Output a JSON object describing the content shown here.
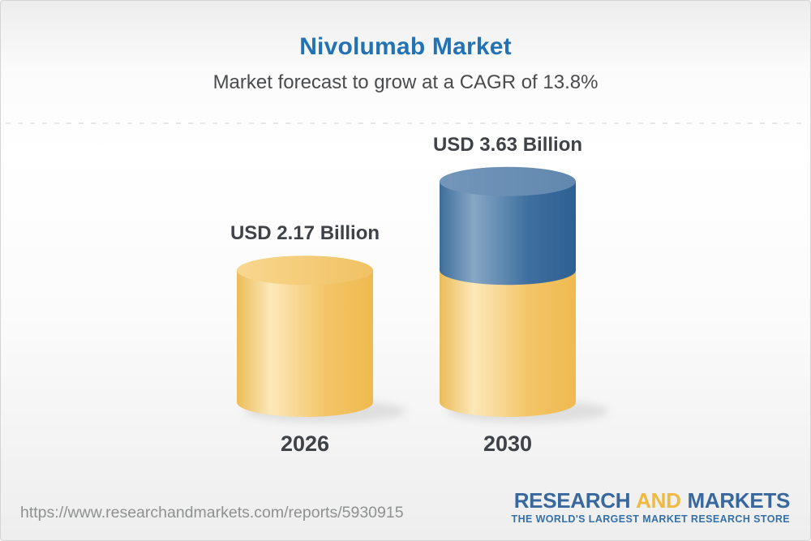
{
  "chart_data": {
    "type": "bar",
    "variant": "3d-cylinder",
    "title": "Nivolumab Market",
    "subtitle": "Market forecast to grow at a CAGR of 13.8%",
    "cagr_percent": 13.8,
    "unit": "USD Billion",
    "categories": [
      "2026",
      "2030"
    ],
    "values": [
      2.17,
      3.63
    ],
    "value_labels": [
      "USD 2.17 Billion",
      "USD 3.63 Billion"
    ],
    "bars": [
      {
        "category": "2026",
        "value": 2.17,
        "label": "USD 2.17 Billion",
        "segments": [
          {
            "name": "base",
            "value": 2.17,
            "palette": "yellow"
          }
        ]
      },
      {
        "category": "2030",
        "value": 3.63,
        "label": "USD 3.63 Billion",
        "segments": [
          {
            "name": "base",
            "value": 2.17,
            "palette": "yellow"
          },
          {
            "name": "growth",
            "value": 1.46,
            "palette": "blue"
          }
        ]
      }
    ],
    "palettes": {
      "yellow": {
        "body": [
          [
            "0%",
            "#ecbc59"
          ],
          [
            "25%",
            "#fce8ba"
          ],
          [
            "65%",
            "#f3c568"
          ],
          [
            "100%",
            "#efba4f"
          ]
        ],
        "cap": [
          [
            "0%",
            "#f8d78f"
          ],
          [
            "100%",
            "#f1c164"
          ]
        ]
      },
      "blue": {
        "body": [
          [
            "0%",
            "#3e6d9c"
          ],
          [
            "25%",
            "#87a7c4"
          ],
          [
            "65%",
            "#3f6fa0"
          ],
          [
            "100%",
            "#2e6093"
          ]
        ],
        "cap": [
          [
            "0%",
            "#7396ba"
          ],
          [
            "100%",
            "#6288ae"
          ]
        ]
      }
    },
    "shadow_color": "#c8c8c8",
    "legend": null,
    "style": {
      "title_color": "#2272b4",
      "subtitle_color": "#4a4b4d",
      "label_color": "#3f4347",
      "background_top": "#ededed",
      "background_bottom": "#eeeeee"
    }
  },
  "footer": {
    "url": "https://www.researchandmarkets.com/reports/5930915",
    "logo": {
      "research": "RESEARCH",
      "and": "AND",
      "markets": "MARKETS",
      "tagline": "THE WORLD'S LARGEST MARKET RESEARCH STORE",
      "blue": "#38689e",
      "gold": "#f0b942",
      "tagline_color": "#3570a8"
    }
  }
}
